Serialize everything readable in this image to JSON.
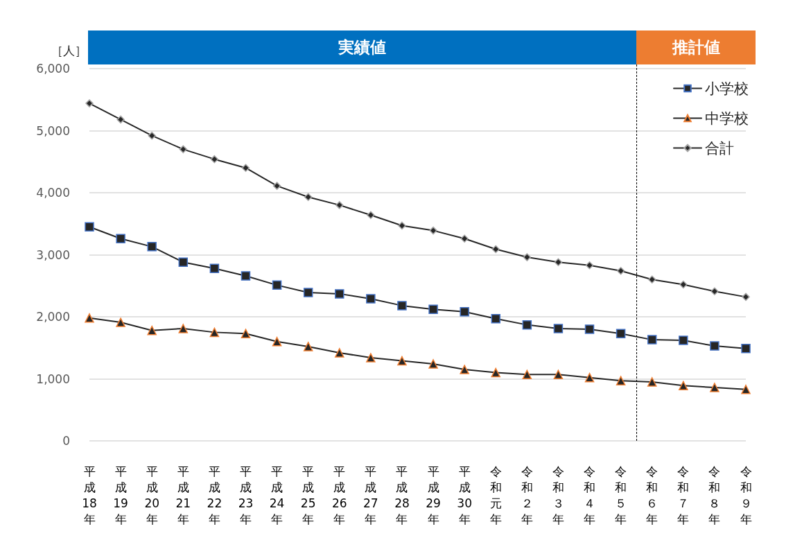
{
  "chart_data": {
    "type": "line",
    "categories": [
      "平成18年",
      "平成19年",
      "平成20年",
      "平成21年",
      "平成22年",
      "平成23年",
      "平成24年",
      "平成25年",
      "平成26年",
      "平成27年",
      "平成28年",
      "平成29年",
      "平成30年",
      "令和元年",
      "令和２年",
      "令和３年",
      "令和４年",
      "令和５年",
      "令和６年",
      "令和７年",
      "令和８年",
      "令和９年"
    ],
    "series": [
      {
        "name": "小学校",
        "color": "#262626",
        "marker": "square",
        "values": [
          3450,
          3260,
          3130,
          2880,
          2780,
          2660,
          2510,
          2390,
          2370,
          2290,
          2180,
          2120,
          2080,
          1970,
          1870,
          1810,
          1800,
          1730,
          1630,
          1620,
          1530,
          1490
        ]
      },
      {
        "name": "中学校",
        "color": "#262626",
        "marker": "triangle",
        "values": [
          1980,
          1910,
          1780,
          1810,
          1750,
          1730,
          1600,
          1520,
          1420,
          1340,
          1290,
          1240,
          1150,
          1100,
          1070,
          1070,
          1020,
          970,
          950,
          890,
          860,
          830
        ]
      },
      {
        "name": "合計",
        "color": "#262626",
        "marker": "diamond",
        "values": [
          5440,
          5180,
          4920,
          4700,
          4540,
          4400,
          4110,
          3930,
          3800,
          3640,
          3470,
          3390,
          3260,
          3090,
          2960,
          2880,
          2830,
          2740,
          2600,
          2520,
          2410,
          2320
        ]
      }
    ],
    "ylabel": "［人］",
    "ylim": [
      0,
      6000
    ],
    "yticks": [
      0,
      {
        "value": 1000,
        "label": "1,000"
      },
      {
        "value": 2000,
        "label": "2,000"
      },
      {
        "value": 3000,
        "label": "3,000"
      },
      {
        "value": 4000,
        "label": "4,000"
      },
      {
        "value": 5000,
        "label": "5,000"
      },
      {
        "value": 6000,
        "label": "6,000"
      }
    ],
    "grid": "y",
    "legend": "top right",
    "line_style": "solid",
    "annotations": [
      "実績値",
      "推計値"
    ],
    "ref_lines": [
      {
        "axis": "x",
        "value": "令和５年",
        "color": "#000000",
        "line_style": "dashed"
      }
    ]
  }
}
